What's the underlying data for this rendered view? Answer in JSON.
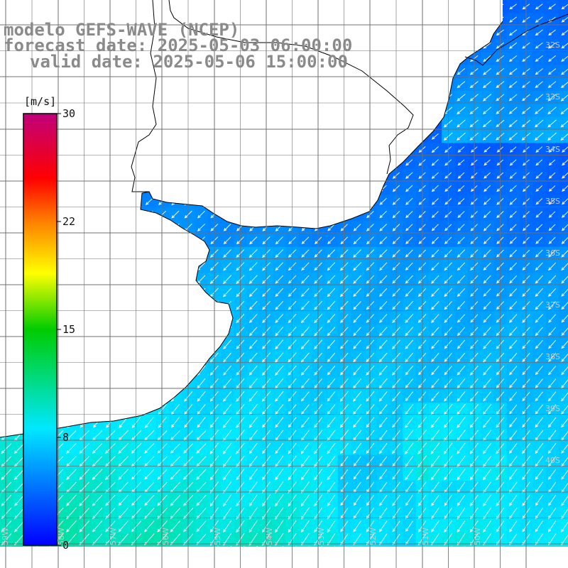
{
  "title": {
    "line1": "modelo GEFS-WAVE (NCEP)",
    "line2": "forecast date: 2025-05-03 06:00:00",
    "line3": "valid date: 2025-05-06 15:00:00"
  },
  "colorbar": {
    "unit": "[m/s]",
    "ticks": [
      "30",
      "22",
      "15",
      "8",
      "0"
    ],
    "min": 0,
    "max": 30
  },
  "lat_labels": [
    "32S",
    "33S",
    "34S",
    "35S",
    "36S",
    "37S",
    "38S",
    "39S",
    "40S"
  ],
  "lon_labels": [
    "59W",
    "58W",
    "57W",
    "56W",
    "55W",
    "54W",
    "53W",
    "52W",
    "51W",
    "50W"
  ],
  "wind_field": {
    "variable": "wind speed",
    "dominant_direction": "from northeast",
    "coast_speed_range_ms": [
      4,
      6
    ],
    "southwest_speed_range_ms": [
      8,
      10
    ]
  },
  "colors": {
    "title": "#8a8a8a",
    "land": "#ffffff",
    "grid": "#707070",
    "coastline": "#000000",
    "arrows": "#ffffff"
  }
}
